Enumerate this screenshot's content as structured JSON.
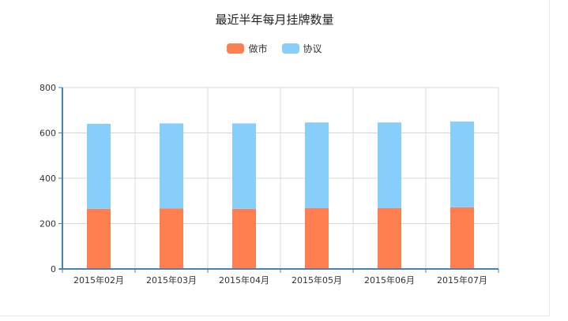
{
  "chart_data": {
    "type": "bar",
    "stacked": true,
    "title": "最近半年每月挂牌数量",
    "categories": [
      "2015年02月",
      "2015年03月",
      "2015年04月",
      "2015年05月",
      "2015年06月",
      "2015年07月"
    ],
    "series": [
      {
        "name": "做市",
        "color": "#ff7f50",
        "values": [
          265,
          267,
          265,
          268,
          268,
          272
        ]
      },
      {
        "name": "协议",
        "color": "#87cefa",
        "values": [
          375,
          375,
          377,
          378,
          378,
          378
        ]
      }
    ],
    "ylim": [
      0,
      800
    ],
    "yticks": [
      0,
      200,
      400,
      600,
      800
    ],
    "grid": true,
    "legend_position": "top-center"
  }
}
